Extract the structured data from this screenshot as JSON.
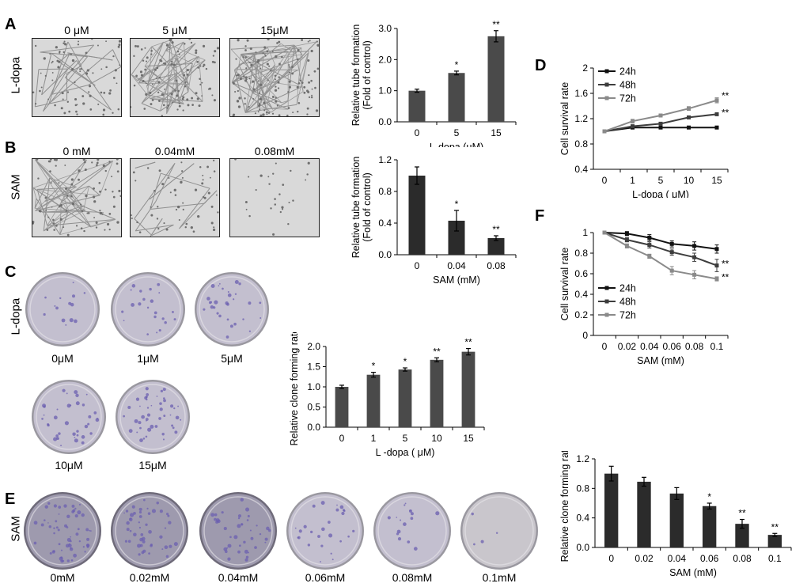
{
  "panels": {
    "A": {
      "letter": "A",
      "row": "L-dopa",
      "images": [
        "0 μM",
        "5 μM",
        "15μM"
      ]
    },
    "B": {
      "letter": "B",
      "row": "SAM",
      "images": [
        "0 mM",
        "0.04mM",
        "0.08mM"
      ]
    },
    "C": {
      "letter": "C",
      "row": "L-dopa",
      "dishes": [
        "0μM",
        "1μM",
        "5μM",
        "10μM",
        "15μM"
      ]
    },
    "D": {
      "letter": "D"
    },
    "E": {
      "letter": "E",
      "row": "SAM",
      "dishes": [
        "0mM",
        "0.02mM",
        "0.04mM",
        "0.06mM",
        "0.08mM",
        "0.1mM"
      ]
    },
    "F": {
      "letter": "F"
    }
  },
  "colors": {
    "bar_dark": "#2b2b2b",
    "bar_mid": "#4a4a4a",
    "line_24h": "#111111",
    "line_48h": "#3d3d3d",
    "line_72h": "#8a8a8a",
    "dish_spot": "#6b5fb0"
  },
  "chart_data": [
    {
      "id": "A_bar",
      "type": "bar",
      "categories": [
        "0",
        "5",
        "15"
      ],
      "values": [
        1.0,
        1.57,
        2.75
      ],
      "errors": [
        0.05,
        0.06,
        0.18
      ],
      "marks": [
        "",
        "*",
        "**"
      ],
      "xlabel": "L-dopa (μM)",
      "ylabel": [
        "Relative tube formation",
        "(Fold of control)"
      ],
      "ylim": [
        0,
        3.0
      ],
      "yticks": [
        "0.0",
        "1.0",
        "2.0",
        "3.0"
      ],
      "color": "#4a4a4a"
    },
    {
      "id": "B_bar",
      "type": "bar",
      "categories": [
        "0",
        "0.04",
        "0.08"
      ],
      "values": [
        1.0,
        0.43,
        0.21
      ],
      "errors": [
        0.11,
        0.13,
        0.03
      ],
      "marks": [
        "",
        "*",
        "**"
      ],
      "xlabel": "SAM (mM)",
      "ylabel": [
        "Relative tube formation",
        "(Fold of control)"
      ],
      "ylim": [
        0,
        1.2
      ],
      "yticks": [
        "0.0",
        "0.4",
        "0.8",
        "1.2"
      ],
      "color": "#2b2b2b"
    },
    {
      "id": "C_bar",
      "type": "bar",
      "categories": [
        "0",
        "1",
        "5",
        "10",
        "15"
      ],
      "values": [
        1.0,
        1.3,
        1.43,
        1.67,
        1.87
      ],
      "errors": [
        0.04,
        0.06,
        0.04,
        0.05,
        0.08
      ],
      "marks": [
        "",
        "*",
        "*",
        "**",
        "**"
      ],
      "xlabel": "L -dopa ( μM)",
      "ylabel": [
        "Relative clone forming rate"
      ],
      "ylim": [
        0,
        2.0
      ],
      "yticks": [
        "0.0",
        "0.5",
        "1.0",
        "1.5",
        "2.0"
      ],
      "color": "#4a4a4a"
    },
    {
      "id": "D_line",
      "type": "line",
      "categories": [
        "0",
        "1",
        "5",
        "10",
        "15"
      ],
      "xlabel": "L-dopa ( μM)",
      "ylabel": [
        "Cell survival rate"
      ],
      "ylim": [
        0.4,
        2.0
      ],
      "yticks": [
        "0.4",
        "0.8",
        "1.2",
        "1.6",
        "2"
      ],
      "legend": "top-left",
      "series": [
        {
          "name": "24h",
          "values": [
            1.0,
            1.06,
            1.06,
            1.06,
            1.06
          ],
          "errors": [
            0.01,
            0.01,
            0.01,
            0.01,
            0.01
          ],
          "color": "#111111"
        },
        {
          "name": "48h",
          "values": [
            1.0,
            1.08,
            1.12,
            1.22,
            1.27
          ],
          "errors": [
            0.01,
            0.02,
            0.02,
            0.02,
            0.02
          ],
          "color": "#3d3d3d"
        },
        {
          "name": "72h",
          "values": [
            1.0,
            1.16,
            1.25,
            1.36,
            1.49
          ],
          "errors": [
            0.01,
            0.03,
            0.02,
            0.03,
            0.04
          ],
          "color": "#8a8a8a"
        }
      ],
      "marks": [
        {
          "series": "72h",
          "text": "**"
        },
        {
          "series": "48h",
          "text": "**"
        }
      ]
    },
    {
      "id": "F_line",
      "type": "line",
      "categories": [
        "0",
        "0.02",
        "0.04",
        "0.06",
        "0.08",
        "0.1"
      ],
      "xlabel": "SAM (mM)",
      "ylabel": [
        "Cell survival rate"
      ],
      "ylim": [
        0,
        1.0
      ],
      "yticks": [
        "0",
        "0.2",
        "0.4",
        "0.6",
        "0.8",
        "1"
      ],
      "legend": "bottom-left",
      "series": [
        {
          "name": "24h",
          "values": [
            1.0,
            0.99,
            0.95,
            0.89,
            0.87,
            0.84
          ],
          "errors": [
            0.01,
            0.02,
            0.03,
            0.03,
            0.04,
            0.04
          ],
          "color": "#111111"
        },
        {
          "name": "48h",
          "values": [
            1.0,
            0.93,
            0.88,
            0.81,
            0.76,
            0.68
          ],
          "errors": [
            0.01,
            0.02,
            0.03,
            0.03,
            0.04,
            0.06
          ],
          "color": "#3d3d3d"
        },
        {
          "name": "72h",
          "values": [
            1.0,
            0.87,
            0.77,
            0.63,
            0.59,
            0.55
          ],
          "errors": [
            0.01,
            0.02,
            0.02,
            0.04,
            0.04,
            0.02
          ],
          "color": "#8a8a8a"
        }
      ],
      "marks": [
        {
          "series": "48h",
          "text": "**"
        },
        {
          "series": "72h",
          "text": "**"
        }
      ]
    },
    {
      "id": "E_bar",
      "type": "bar",
      "categories": [
        "0",
        "0.02",
        "0.04",
        "0.06",
        "0.08",
        "0.1"
      ],
      "values": [
        1.0,
        0.89,
        0.73,
        0.56,
        0.32,
        0.17
      ],
      "errors": [
        0.1,
        0.06,
        0.08,
        0.04,
        0.06,
        0.02
      ],
      "marks": [
        "",
        "",
        "",
        "*",
        "**",
        "**"
      ],
      "xlabel": "SAM (mM)",
      "ylabel": [
        "Relative clone forming rate"
      ],
      "ylim": [
        0,
        1.2
      ],
      "yticks": [
        "0.0",
        "0.4",
        "0.8",
        "1.2"
      ],
      "color": "#2b2b2b"
    }
  ]
}
